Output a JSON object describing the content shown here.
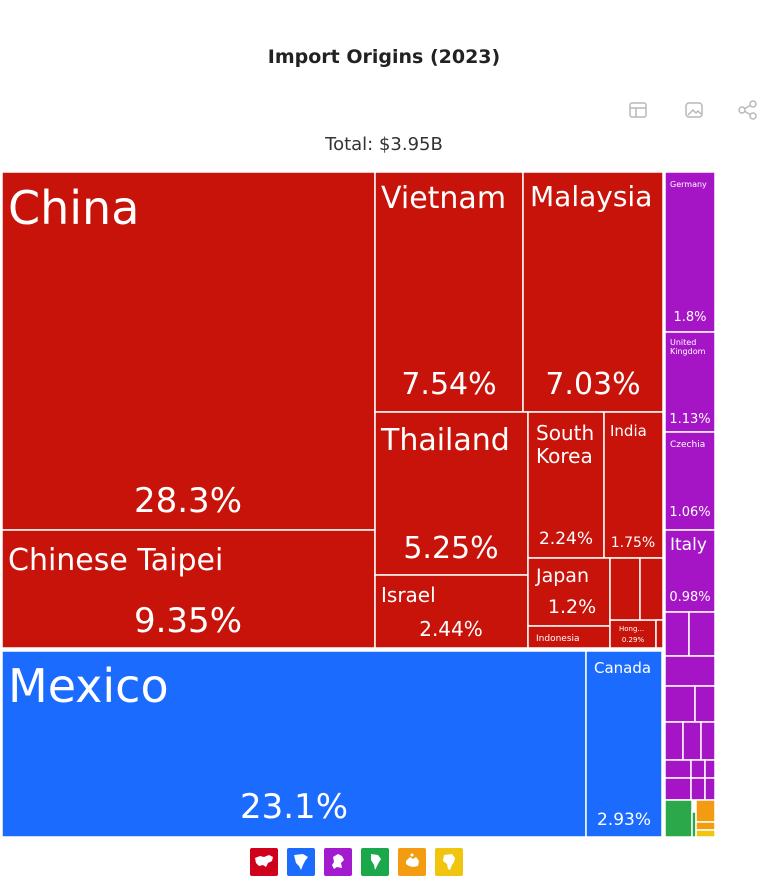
{
  "title": "Import Origins (2023)",
  "subtitle": "Total: $3.95B",
  "toolbar": {
    "icons": [
      "table-icon",
      "image-icon",
      "share-icon"
    ]
  },
  "legend": {
    "items": [
      {
        "icon": "asia-icon",
        "color": "#d0021b"
      },
      {
        "icon": "north-america-icon",
        "color": "#1c6bff"
      },
      {
        "icon": "europe-icon",
        "color": "#a21bcf"
      },
      {
        "icon": "south-america-icon",
        "color": "#1aa84a"
      },
      {
        "icon": "oceania-icon",
        "color": "#f39c12"
      },
      {
        "icon": "africa-icon",
        "color": "#f1c40f"
      }
    ]
  },
  "chart_data": {
    "type": "treemap",
    "title": "Import Origins (2023)",
    "subtitle": "Total: $3.95B",
    "colors": {
      "Asia": "#c8130b",
      "North America": "#1c6bff",
      "Europe": "#a515c6",
      "South America": "#2aa84a",
      "Oceania": "#f39c12",
      "Africa": "#f1c40f"
    },
    "items": [
      {
        "name": "China",
        "share": "28.3%",
        "region": "Asia"
      },
      {
        "name": "Chinese Taipei",
        "share": "9.35%",
        "region": "Asia"
      },
      {
        "name": "Vietnam",
        "share": "7.54%",
        "region": "Asia"
      },
      {
        "name": "Malaysia",
        "share": "7.03%",
        "region": "Asia"
      },
      {
        "name": "Thailand",
        "share": "5.25%",
        "region": "Asia"
      },
      {
        "name": "South Korea",
        "share": "2.24%",
        "region": "Asia"
      },
      {
        "name": "India",
        "share": "1.75%",
        "region": "Asia"
      },
      {
        "name": "Israel",
        "share": "2.44%",
        "region": "Asia"
      },
      {
        "name": "Japan",
        "share": "1.2%",
        "region": "Asia"
      },
      {
        "name": "Indonesia",
        "share": "",
        "region": "Asia"
      },
      {
        "name": "Hong...",
        "share": "0.29%",
        "region": "Asia"
      },
      {
        "name": "Mexico",
        "share": "23.1%",
        "region": "North America"
      },
      {
        "name": "Canada",
        "share": "2.93%",
        "region": "North America"
      },
      {
        "name": "Germany",
        "share": "1.8%",
        "region": "Europe"
      },
      {
        "name": "United Kingdom",
        "share": "1.13%",
        "region": "Europe"
      },
      {
        "name": "Czechia",
        "share": "1.06%",
        "region": "Europe"
      },
      {
        "name": "Italy",
        "share": "0.98%",
        "region": "Europe"
      }
    ]
  }
}
